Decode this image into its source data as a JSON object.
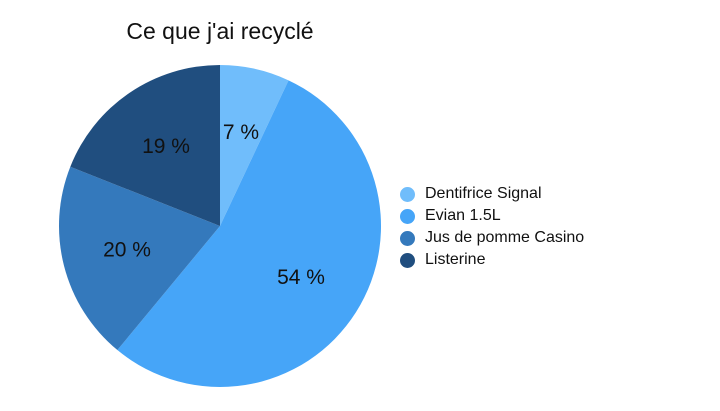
{
  "chart_data": {
    "type": "pie",
    "title": "Ce que j'ai recyclé",
    "categories": [
      "Dentifrice Signal",
      "Evian 1.5L",
      "Jus de pomme Casino",
      "Listerine"
    ],
    "values": [
      7,
      54,
      20,
      19
    ],
    "value_labels": [
      "7 %",
      "54 %",
      "20 %",
      "19 %"
    ],
    "colors": [
      "#70bdfb",
      "#46a5f8",
      "#3479bc",
      "#204e7f"
    ],
    "start_angle": "12 o'clock",
    "direction": "clockwise",
    "legend_position": "right"
  }
}
